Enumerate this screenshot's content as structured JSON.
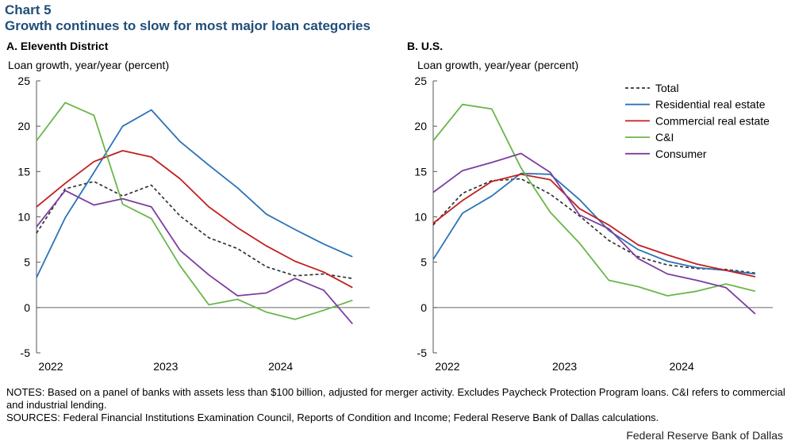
{
  "header": {
    "chart_number": "Chart 5",
    "title": "Growth continues to slow for most major loan categories"
  },
  "footer": {
    "notes": "NOTES: Based on a panel of banks with assets less than $100 billion, adjusted for merger activity. Excludes Paycheck Protection Program loans. C&I refers to commercial and industrial lending.",
    "sources": "SOURCES: Federal Financial Institutions Examination Council, Reports of Condition and Income; Federal Reserve Bank of Dallas calculations.",
    "credit": "Federal Reserve Bank of Dallas"
  },
  "colors": {
    "Total": "#333333",
    "Residential real estate": "#2b73b6",
    "Commercial real estate": "#c0201f",
    "C&I": "#6ab64a",
    "Consumer": "#7b3e9e"
  },
  "chart_data": [
    {
      "type": "line",
      "panel_title": "A. Eleventh District",
      "ylabel": "Loan growth, year/year (percent)",
      "ylim": [
        -5,
        25
      ],
      "yticks": [
        -5,
        0,
        5,
        10,
        15,
        20,
        25
      ],
      "xlim": [
        2022.0,
        2024.9
      ],
      "xticks": [
        {
          "value": 2022.0,
          "label": "2022"
        },
        {
          "value": 2023.0,
          "label": "2023"
        },
        {
          "value": 2024.0,
          "label": "2024"
        }
      ],
      "x": [
        2022.0,
        2022.25,
        2022.5,
        2022.75,
        2023.0,
        2023.25,
        2023.5,
        2023.75,
        2024.0,
        2024.25,
        2024.5,
        2024.75
      ],
      "series": [
        {
          "name": "Total",
          "dashed": true,
          "values": [
            8.2,
            13.1,
            13.9,
            12.3,
            13.5,
            10.1,
            7.7,
            6.5,
            4.5,
            3.5,
            3.7,
            3.2
          ]
        },
        {
          "name": "Residential real estate",
          "values": [
            3.3,
            9.9,
            14.9,
            20.0,
            21.8,
            18.3,
            15.7,
            13.2,
            10.3,
            8.6,
            7.0,
            5.6
          ]
        },
        {
          "name": "Commercial real estate",
          "values": [
            11.1,
            13.7,
            16.1,
            17.3,
            16.6,
            14.2,
            11.1,
            8.8,
            6.8,
            5.1,
            3.9,
            2.2
          ]
        },
        {
          "name": "C&I",
          "values": [
            18.4,
            22.6,
            21.2,
            11.4,
            9.8,
            4.6,
            0.3,
            0.9,
            -0.5,
            -1.3,
            -0.3,
            0.8
          ]
        },
        {
          "name": "Consumer",
          "values": [
            8.9,
            12.9,
            11.3,
            12.0,
            11.1,
            6.3,
            3.6,
            1.3,
            1.6,
            3.2,
            1.9,
            -1.8
          ]
        }
      ]
    },
    {
      "type": "line",
      "panel_title": "B. U.S.",
      "ylabel": "Loan growth, year/year (percent)",
      "ylim": [
        -5,
        25
      ],
      "yticks": [
        -5,
        0,
        5,
        10,
        15,
        20,
        25
      ],
      "xlim": [
        2022.0,
        2024.9
      ],
      "xticks": [
        {
          "value": 2022.0,
          "label": "2022"
        },
        {
          "value": 2023.0,
          "label": "2023"
        },
        {
          "value": 2024.0,
          "label": "2024"
        }
      ],
      "x": [
        2022.0,
        2022.25,
        2022.5,
        2022.75,
        2023.0,
        2023.25,
        2023.5,
        2023.75,
        2024.0,
        2024.25,
        2024.5,
        2024.75
      ],
      "legend": [
        "Total",
        "Residential real estate",
        "Commercial real estate",
        "C&I",
        "Consumer"
      ],
      "series": [
        {
          "name": "Total",
          "dashed": true,
          "values": [
            9.1,
            12.6,
            14.0,
            14.2,
            12.5,
            10.1,
            7.4,
            5.6,
            4.7,
            4.3,
            4.2,
            3.8
          ]
        },
        {
          "name": "Residential real estate",
          "values": [
            5.3,
            10.4,
            12.3,
            14.8,
            14.7,
            11.9,
            8.5,
            6.4,
            5.1,
            4.4,
            4.1,
            3.7
          ]
        },
        {
          "name": "Commercial real estate",
          "values": [
            9.3,
            11.8,
            13.9,
            14.7,
            14.1,
            10.9,
            9.1,
            6.9,
            5.8,
            4.8,
            4.1,
            3.4
          ]
        },
        {
          "name": "C&I",
          "values": [
            18.4,
            22.4,
            21.9,
            15.4,
            10.5,
            7.1,
            3.0,
            2.3,
            1.3,
            1.8,
            2.6,
            1.8
          ]
        },
        {
          "name": "Consumer",
          "values": [
            12.7,
            15.1,
            16.0,
            17.0,
            14.9,
            10.2,
            8.7,
            5.4,
            3.7,
            3.0,
            2.2,
            -0.7
          ]
        }
      ]
    }
  ]
}
